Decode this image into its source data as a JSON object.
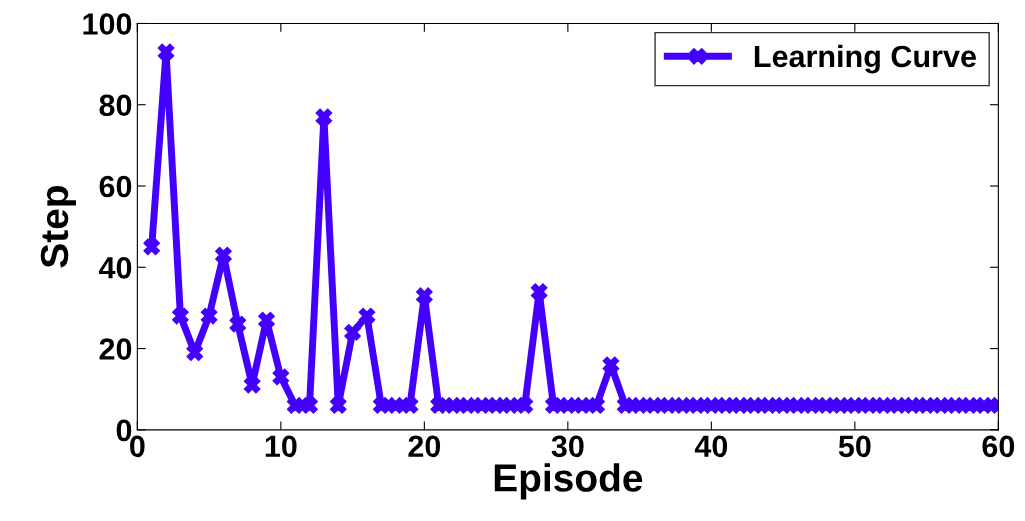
{
  "chart_data": {
    "type": "line",
    "xlabel": "Episode",
    "ylabel": "Step",
    "x": [
      1,
      2,
      3,
      4,
      5,
      6,
      7,
      8,
      9,
      10,
      11,
      12,
      13,
      14,
      15,
      16,
      17,
      18,
      19,
      20,
      21,
      22,
      23,
      24,
      25,
      26,
      27,
      28,
      29,
      30,
      31,
      32,
      33,
      34,
      35,
      36,
      37,
      38,
      39,
      40,
      41,
      42,
      43,
      44,
      45,
      46,
      47,
      48,
      49,
      50,
      51,
      52,
      53,
      54,
      55,
      56,
      57,
      58,
      59,
      60
    ],
    "series": [
      {
        "name": "Learning Curve",
        "color": "#4400ff",
        "values": [
          45,
          93,
          28,
          19,
          28,
          43,
          26,
          11,
          27,
          13,
          6,
          6,
          77,
          6,
          24,
          28,
          6,
          6,
          6,
          33,
          6,
          6,
          6,
          6,
          6,
          6,
          6,
          34,
          6,
          6,
          6,
          6,
          16,
          6,
          6,
          6,
          6,
          6,
          6,
          6,
          6,
          6,
          6,
          6,
          6,
          6,
          6,
          6,
          6,
          6,
          6,
          6,
          6,
          6,
          6,
          6,
          6,
          6,
          6,
          6
        ]
      }
    ],
    "xlim": [
      0,
      60
    ],
    "xticks": [
      0,
      10,
      20,
      30,
      40,
      50,
      60
    ],
    "ylim": [
      0,
      100
    ],
    "yticks": [
      0,
      20,
      40,
      60,
      80,
      100
    ],
    "grid": false,
    "legend": "top right",
    "marker": "cross",
    "line_style": "solid"
  }
}
